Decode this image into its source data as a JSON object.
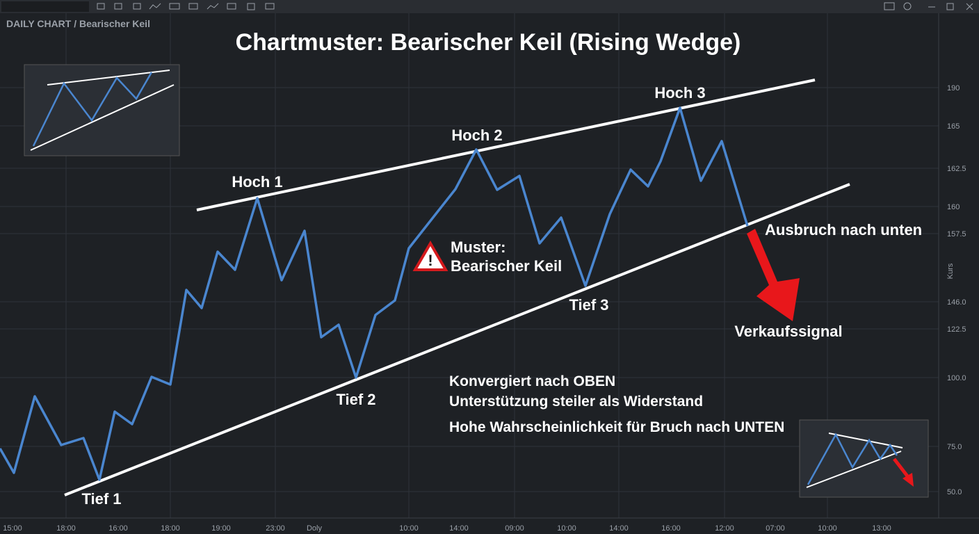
{
  "header": {
    "breadcrumb": "DAILY CHART / Bearischer Keil",
    "title": "Chartmuster: Bearischer Keil (Rising Wedge)"
  },
  "axis": {
    "y_label": "Kurs",
    "y_ticks": [
      "190",
      "165",
      "162.5",
      "160",
      "157.5",
      "146.0",
      "122.5",
      "100.0",
      "75.0",
      "50.0"
    ],
    "x_ticks": [
      "15:00",
      "18:00",
      "16:00",
      "18:00",
      "19:00",
      "23:00",
      "Doly",
      "10:00",
      "14:00",
      "09:00",
      "10:00",
      "14:00",
      "16:00",
      "12:00",
      "07:00",
      "10:00",
      "13:00"
    ]
  },
  "annotations": {
    "highs": [
      "Hoch 1",
      "Hoch 2",
      "Hoch 3"
    ],
    "lows": [
      "Tief 1",
      "Tief 2",
      "Tief 3"
    ],
    "pattern": [
      "Muster:",
      "Bearischer Keil"
    ],
    "breakout": "Ausbruch nach unten",
    "signal": "Verkaufssignal",
    "notes": [
      "Konvergiert nach OBEN",
      "Unterstützung steiler als Widerstand",
      "Hohe Wahrscheinlichkeit für Bruch nach UNTEN"
    ]
  }
}
